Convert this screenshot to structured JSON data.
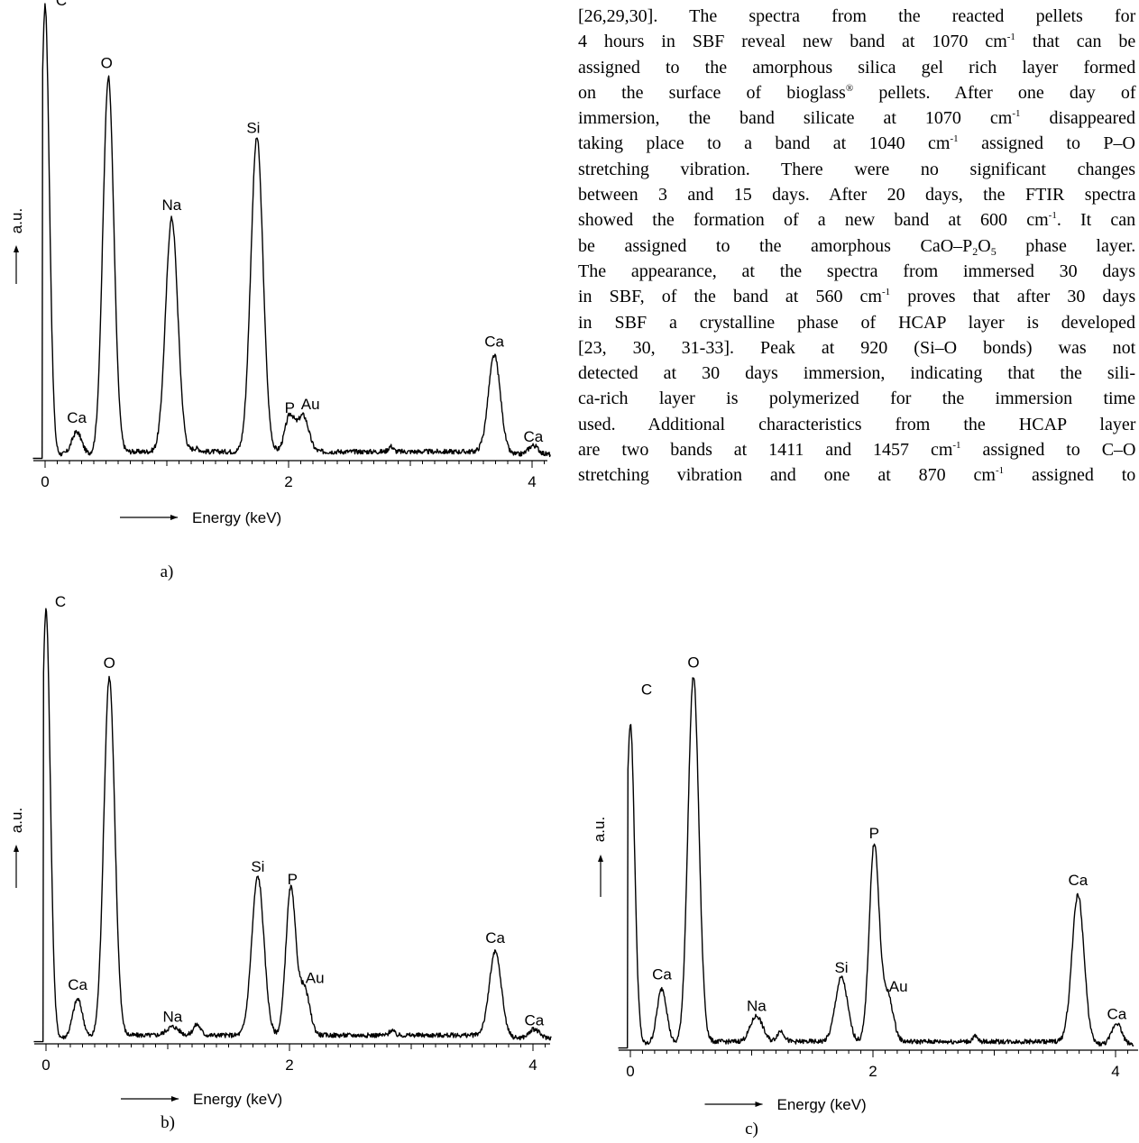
{
  "chart_data": [
    {
      "type": "line",
      "panel_label": "a)",
      "xlabel": "Energy (keV)",
      "ylabel": "a.u.",
      "xlim": [
        -0.1,
        4.15
      ],
      "x_ticks": [
        "0",
        "2",
        "4"
      ],
      "x_tick_values": [
        0,
        2,
        4
      ],
      "ylim": [
        0,
        100
      ],
      "peaks": [
        {
          "label": "C",
          "x": 0.0,
          "y": 100
        },
        {
          "label": "Ca",
          "x": 0.26,
          "y": 5
        },
        {
          "label": "O",
          "x": 0.52,
          "y": 84
        },
        {
          "label": "Na",
          "x": 1.04,
          "y": 52
        },
        {
          "label": "Si",
          "x": 1.74,
          "y": 70
        },
        {
          "label": "P",
          "x": 2.01,
          "y": 8
        },
        {
          "label": "Au",
          "x": 2.12,
          "y": 8
        },
        {
          "label": "Ca",
          "x": 3.69,
          "y": 22
        },
        {
          "label": "Ca",
          "x": 4.01,
          "y": 2
        }
      ]
    },
    {
      "type": "line",
      "panel_label": "b)",
      "xlabel": "Energy (keV)",
      "ylabel": "a.u.",
      "xlim": [
        -0.1,
        4.15
      ],
      "x_ticks": [
        "0",
        "2",
        "4"
      ],
      "x_tick_values": [
        0,
        2,
        4
      ],
      "ylim": [
        0,
        100
      ],
      "peaks": [
        {
          "label": "C",
          "x": 0.0,
          "y": 100
        },
        {
          "label": "Ca",
          "x": 0.26,
          "y": 9
        },
        {
          "label": "O",
          "x": 0.52,
          "y": 84
        },
        {
          "label": "Na",
          "x": 1.04,
          "y": 2
        },
        {
          "label": "Si",
          "x": 1.74,
          "y": 37
        },
        {
          "label": "P",
          "x": 2.01,
          "y": 34
        },
        {
          "label": "Au",
          "x": 2.12,
          "y": 11
        },
        {
          "label": "Ca",
          "x": 3.69,
          "y": 20
        },
        {
          "label": "Ca",
          "x": 4.01,
          "y": 2
        }
      ]
    },
    {
      "type": "line",
      "panel_label": "c)",
      "xlabel": "Energy (keV)",
      "ylabel": "a.u.",
      "xlim": [
        -0.1,
        4.15
      ],
      "x_ticks": [
        "0",
        "2",
        "4"
      ],
      "x_tick_values": [
        0,
        2,
        4
      ],
      "ylim": [
        0,
        100
      ],
      "peaks": [
        {
          "label": "C",
          "x": 0.0,
          "y": 75
        },
        {
          "label": "Ca",
          "x": 0.26,
          "y": 13
        },
        {
          "label": "O",
          "x": 0.52,
          "y": 86
        },
        {
          "label": "Na",
          "x": 1.04,
          "y": 6
        },
        {
          "label": "Si",
          "x": 1.74,
          "y": 15
        },
        {
          "label": "P",
          "x": 2.01,
          "y": 46
        },
        {
          "label": "Au",
          "x": 2.12,
          "y": 11
        },
        {
          "label": "Ca",
          "x": 3.69,
          "y": 35
        },
        {
          "label": "Ca",
          "x": 4.01,
          "y": 5
        }
      ]
    }
  ],
  "text_lines": [
    "[26,29,30]. The spectra from the reacted pellets for",
    "4 hours in SBF reveal new band at 1070 cm|-1| that can be",
    "assigned to the amorphous silica gel rich layer formed",
    "on the surface of bioglass|®| pellets. After one day of",
    "immersion, the band silicate at 1070 cm|-1| disappeared",
    "taking place to a band at 1040 cm|-1| assigned to P–O",
    "stretching vibration. There were no significant changes",
    "between 3 and 15 days. After 20 days, the FTIR spectra",
    "showed the formation of a new band at 600 cm|-1|. It can",
    "be assigned to the amorphous CaO–P_2_O_5_ phase layer.",
    "The appearance, at the spectra from immersed 30 days",
    "in SBF, of the band at 560 cm|-1| proves that after 30 days",
    "in SBF a crystalline phase of HCAP layer is developed",
    "[23, 30, 31-33]. Peak at 920 (Si–O bonds) was not",
    "detected at 30 days immersion, indicating that the sili-",
    "ca-rich layer is polymerized for the immersion time",
    "used. Additional characteristics from the HCAP layer",
    "are two bands at 1411 and 1457 cm|-1| assigned to C–O",
    "stretching vibration and one at 870 cm|-1| assigned to"
  ]
}
